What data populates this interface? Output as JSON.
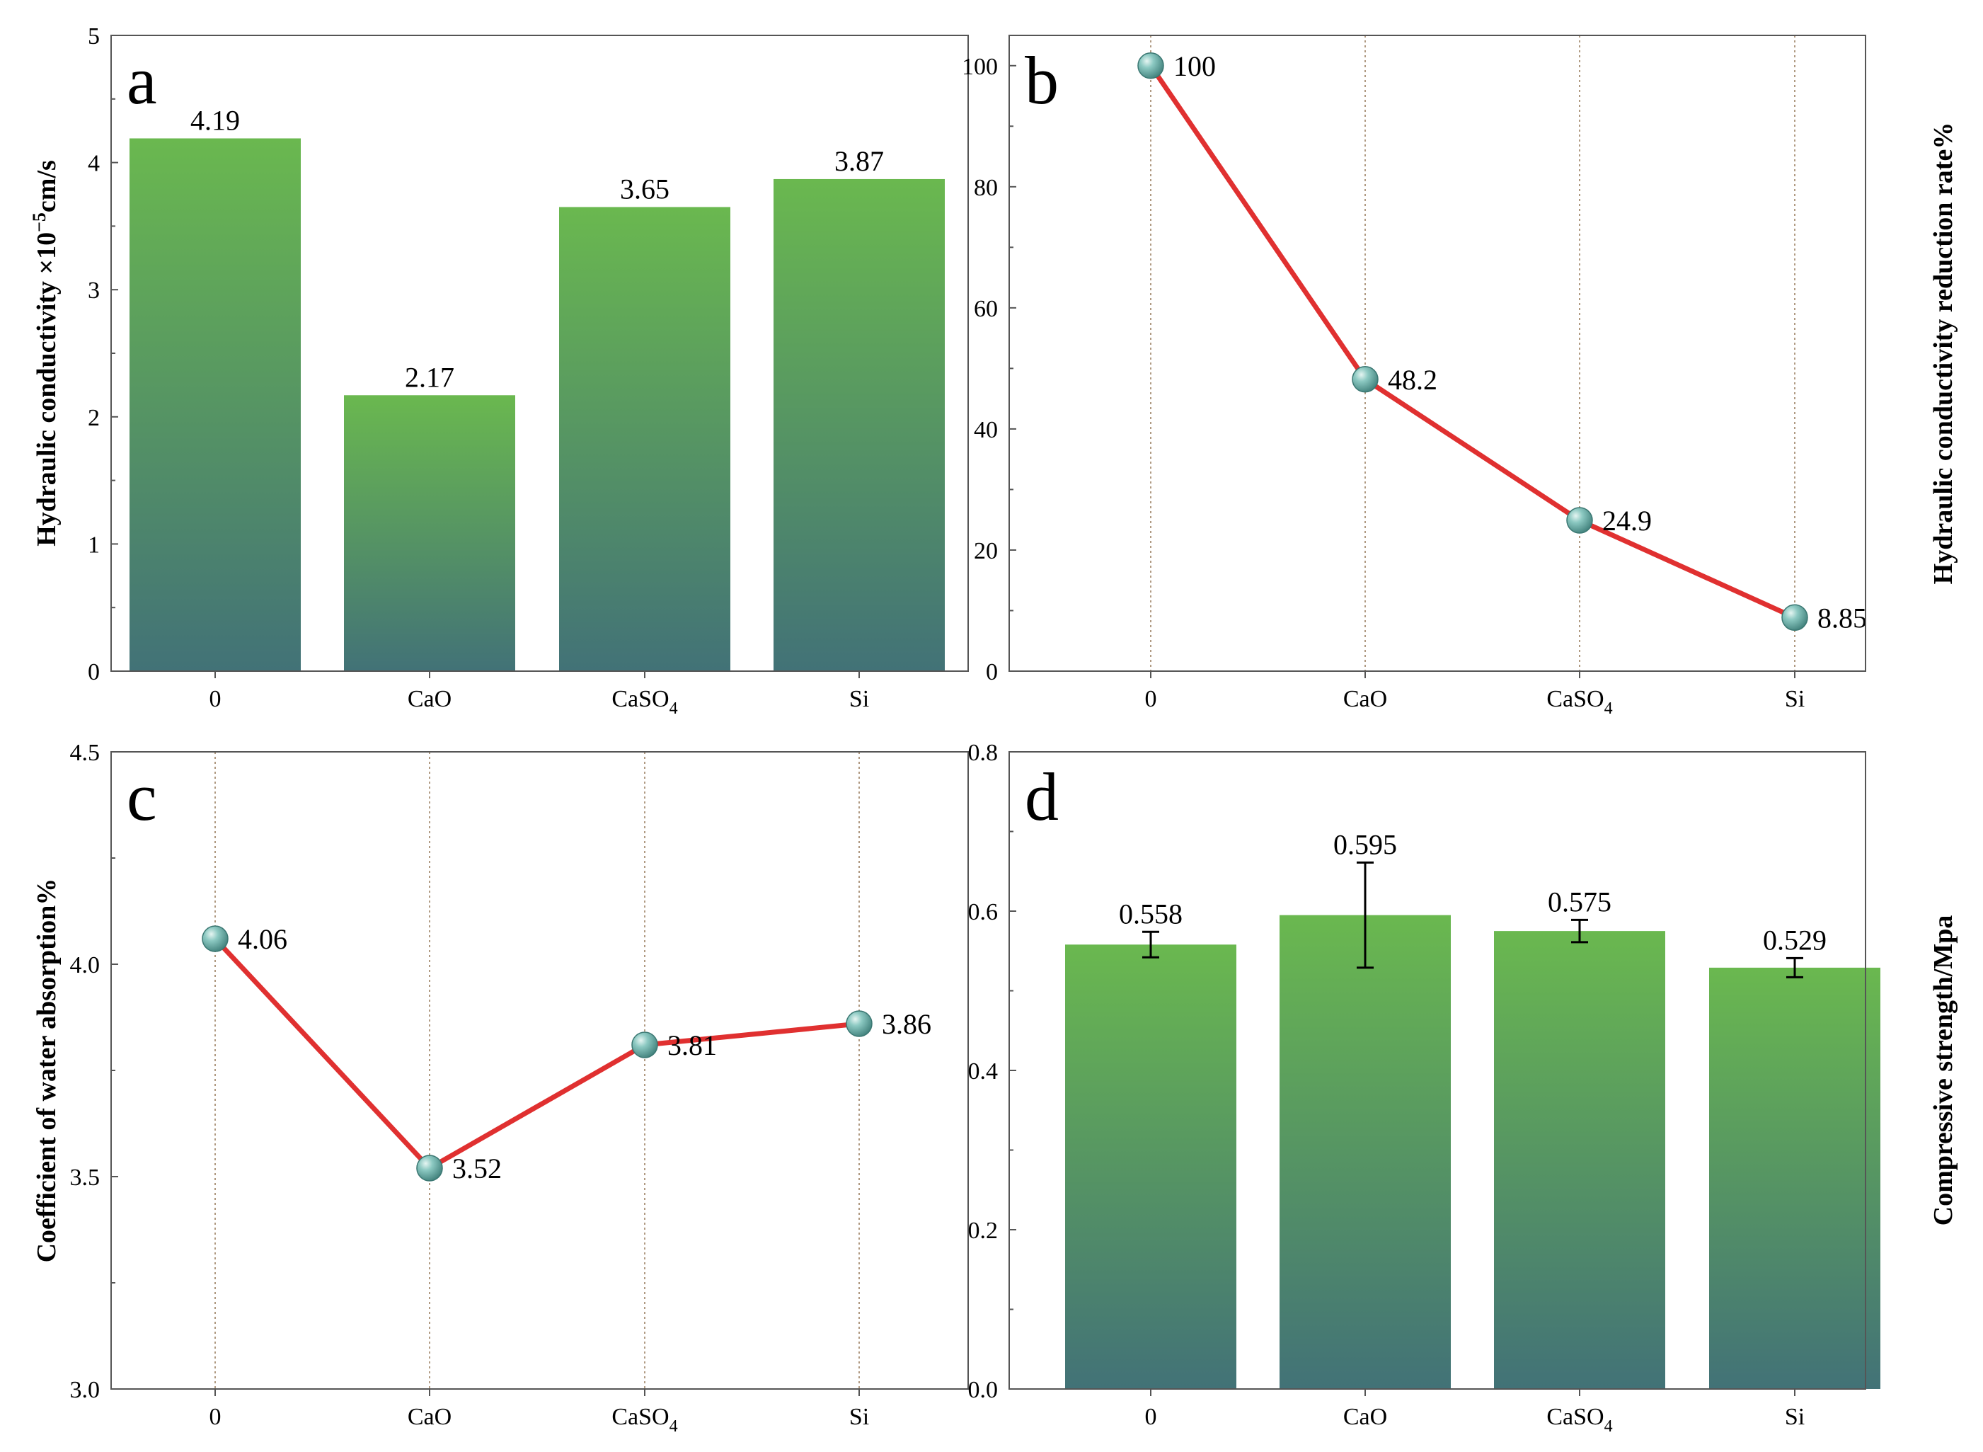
{
  "colors": {
    "bar_top": "#6ab84f",
    "bar_bottom": "#427277",
    "line": "#e03030",
    "marker": "#5fa9a4",
    "vline": "#b09a82"
  },
  "chart_data": [
    {
      "type": "bar",
      "panel_label": "a",
      "categories": [
        "0",
        "CaO",
        "CaSO4",
        "Si"
      ],
      "category_labels": [
        {
          "main": "0",
          "sub": ""
        },
        {
          "main": "CaO",
          "sub": ""
        },
        {
          "main": "CaSO",
          "sub": "4"
        },
        {
          "main": "Si",
          "sub": ""
        }
      ],
      "values": [
        4.19,
        2.17,
        3.65,
        3.87
      ],
      "value_labels": [
        "4.19",
        "2.17",
        "3.65",
        "3.87"
      ],
      "ylabel": {
        "main": "Hydraulic conductivity ×10",
        "sup": "−5",
        "tail": "cm/s"
      },
      "ylabel_position": "left",
      "ylim": [
        0,
        5
      ],
      "yticks": [
        0,
        1,
        2,
        3,
        4,
        5
      ],
      "ytick_labels": [
        "0",
        "1",
        "2",
        "3",
        "4",
        "5"
      ]
    },
    {
      "type": "line",
      "panel_label": "b",
      "categories": [
        "0",
        "CaO",
        "CaSO4",
        "Si"
      ],
      "category_labels": [
        {
          "main": "0",
          "sub": ""
        },
        {
          "main": "CaO",
          "sub": ""
        },
        {
          "main": "CaSO",
          "sub": "4"
        },
        {
          "main": "Si",
          "sub": ""
        }
      ],
      "values": [
        100,
        48.2,
        24.9,
        8.85
      ],
      "value_labels": [
        "100",
        "48.2",
        "24.9",
        "8.85"
      ],
      "ylabel": {
        "main": "Hydraulic conductivity reduction rate%",
        "sup": "",
        "tail": ""
      },
      "ylabel_position": "right",
      "ylim": [
        0,
        105
      ],
      "yticks": [
        0,
        20,
        40,
        60,
        80,
        100
      ],
      "ytick_labels": [
        "0",
        "20",
        "40",
        "60",
        "80",
        "100"
      ]
    },
    {
      "type": "line",
      "panel_label": "c",
      "categories": [
        "0",
        "CaO",
        "CaSO4",
        "Si"
      ],
      "category_labels": [
        {
          "main": "0",
          "sub": ""
        },
        {
          "main": "CaO",
          "sub": ""
        },
        {
          "main": "CaSO",
          "sub": "4"
        },
        {
          "main": "Si",
          "sub": ""
        }
      ],
      "values": [
        4.06,
        3.52,
        3.81,
        3.86
      ],
      "value_labels": [
        "4.06",
        "3.52",
        "3.81",
        "3.86"
      ],
      "ylabel": {
        "main": "Coefficient of water absorption%",
        "sup": "",
        "tail": ""
      },
      "ylabel_position": "left",
      "ylim": [
        3.0,
        4.5
      ],
      "yticks": [
        3.0,
        3.5,
        4.0,
        4.5
      ],
      "ytick_labels": [
        "3.0",
        "3.5",
        "4.0",
        "4.5"
      ]
    },
    {
      "type": "bar",
      "panel_label": "d",
      "categories": [
        "0",
        "CaO",
        "CaSO4",
        "Si"
      ],
      "category_labels": [
        {
          "main": "0",
          "sub": ""
        },
        {
          "main": "CaO",
          "sub": ""
        },
        {
          "main": "CaSO",
          "sub": "4"
        },
        {
          "main": "Si",
          "sub": ""
        }
      ],
      "values": [
        0.558,
        0.595,
        0.575,
        0.529
      ],
      "errors": [
        0.016,
        0.066,
        0.014,
        0.012
      ],
      "value_labels": [
        "0.558",
        "0.595",
        "0.575",
        "0.529"
      ],
      "ylabel": {
        "main": "Compressive strength/Mpa",
        "sup": "",
        "tail": ""
      },
      "ylabel_position": "right",
      "ylim": [
        0,
        0.8
      ],
      "yticks": [
        0,
        0.2,
        0.4,
        0.6,
        0.8
      ],
      "ytick_labels": [
        "0.0",
        "0.2",
        "0.4",
        "0.6",
        "0.8"
      ]
    }
  ]
}
